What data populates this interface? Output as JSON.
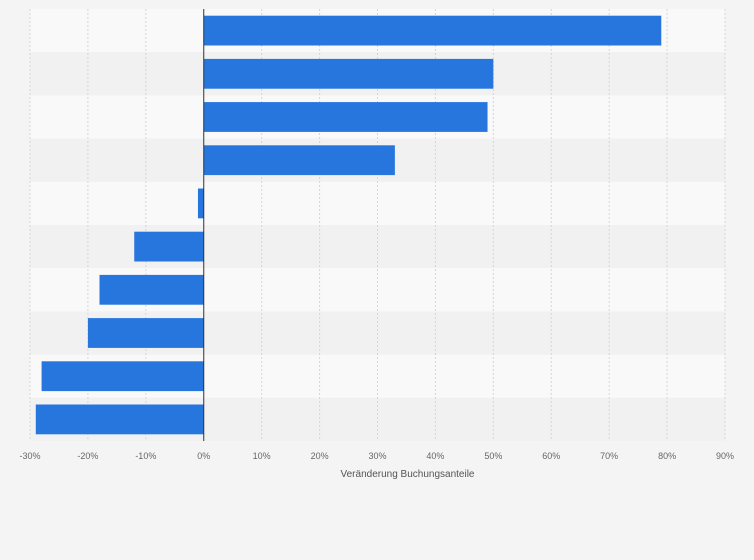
{
  "chart_data": {
    "type": "bar",
    "orientation": "horizontal",
    "categories": [
      "",
      "",
      "",
      "",
      "",
      "",
      "",
      "",
      "",
      ""
    ],
    "values": [
      79,
      50,
      49,
      33,
      -1,
      -12,
      -18,
      -20,
      -28,
      -29
    ],
    "xlabel": "Veränderung Buchungsanteile",
    "ylabel": "",
    "xlim": [
      -30,
      90
    ],
    "x_ticks": [
      -30,
      -20,
      -10,
      0,
      10,
      20,
      30,
      40,
      50,
      60,
      70,
      80,
      90
    ],
    "x_tick_labels": [
      "-30%",
      "-20%",
      "-10%",
      "0%",
      "10%",
      "20%",
      "30%",
      "40%",
      "50%",
      "60%",
      "70%",
      "80%",
      "90%"
    ],
    "grid": true,
    "legend": "none",
    "colors": {
      "bar": "#2776dd",
      "band_light": "#f9f9f9",
      "band_dark": "#f1f1f1",
      "grid": "#d6d6d6",
      "zero_line": "#333333"
    }
  }
}
